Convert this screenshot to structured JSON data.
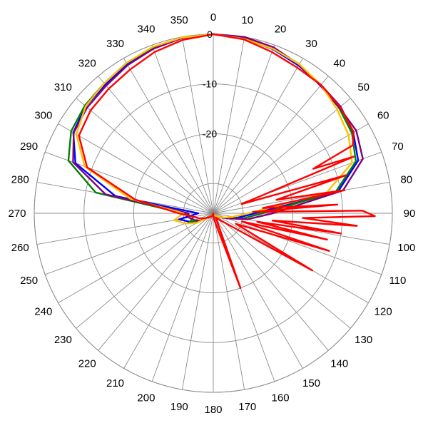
{
  "chart_data": {
    "type": "polar-line",
    "title": "",
    "angle_ticks": [
      0,
      10,
      20,
      30,
      40,
      50,
      60,
      70,
      80,
      90,
      100,
      110,
      120,
      130,
      140,
      150,
      160,
      170,
      180,
      190,
      200,
      210,
      220,
      230,
      240,
      250,
      260,
      270,
      280,
      290,
      300,
      310,
      320,
      330,
      340,
      350
    ],
    "angle_direction": "clockwise",
    "zero_at": "top",
    "radial_range": [
      -36,
      0
    ],
    "radial_ticks": [
      0,
      -10,
      -20
    ],
    "grid": true,
    "series": [
      {
        "color": "#0000ff",
        "points": [
          [
            0,
            0
          ],
          [
            10,
            -0.3
          ],
          [
            20,
            -0.9
          ],
          [
            30,
            -1.7
          ],
          [
            40,
            -2.3
          ],
          [
            50,
            -2.6
          ],
          [
            60,
            -3.5
          ],
          [
            70,
            -5
          ],
          [
            80,
            -10.5
          ],
          [
            90,
            -27.5
          ],
          [
            100,
            -31
          ],
          [
            110,
            -33
          ],
          [
            120,
            -34.5
          ],
          [
            150,
            -35.5
          ],
          [
            180,
            -36
          ],
          [
            210,
            -35.5
          ],
          [
            240,
            -33
          ],
          [
            250,
            -31
          ],
          [
            260,
            -29
          ],
          [
            270,
            -33
          ],
          [
            280,
            -16
          ],
          [
            290,
            -6.5
          ],
          [
            300,
            -3.5
          ],
          [
            310,
            -2.5
          ],
          [
            320,
            -2.2
          ],
          [
            330,
            -1.3
          ],
          [
            340,
            -0.6
          ],
          [
            350,
            -0.1
          ],
          [
            360,
            0
          ]
        ]
      },
      {
        "color": "#008000",
        "points": [
          [
            0,
            0
          ],
          [
            10,
            -0.2
          ],
          [
            20,
            -0.7
          ],
          [
            30,
            -1.4
          ],
          [
            40,
            -2.4
          ],
          [
            50,
            -3
          ],
          [
            60,
            -3.8
          ],
          [
            70,
            -5.5
          ],
          [
            80,
            -11
          ],
          [
            90,
            -26
          ],
          [
            100,
            -30
          ],
          [
            110,
            -33
          ],
          [
            120,
            -34.5
          ],
          [
            150,
            -35.5
          ],
          [
            180,
            -36
          ],
          [
            210,
            -35.5
          ],
          [
            240,
            -33
          ],
          [
            250,
            -31
          ],
          [
            260,
            -32
          ],
          [
            270,
            -30
          ],
          [
            280,
            -12
          ],
          [
            290,
            -5
          ],
          [
            300,
            -3
          ],
          [
            310,
            -2.3
          ],
          [
            320,
            -1.9
          ],
          [
            330,
            -1.1
          ],
          [
            340,
            -0.5
          ],
          [
            350,
            -0.1
          ],
          [
            360,
            0
          ]
        ]
      },
      {
        "color": "#800080",
        "points": [
          [
            0,
            0
          ],
          [
            10,
            0
          ],
          [
            20,
            -0.5
          ],
          [
            30,
            -1.5
          ],
          [
            40,
            -2.5
          ],
          [
            50,
            -2.9
          ],
          [
            60,
            -2.8
          ],
          [
            70,
            -4
          ],
          [
            80,
            -9.5
          ],
          [
            90,
            -24
          ],
          [
            100,
            -29
          ],
          [
            110,
            -33
          ],
          [
            120,
            -34.5
          ],
          [
            150,
            -35.5
          ],
          [
            180,
            -36
          ],
          [
            210,
            -35.5
          ],
          [
            240,
            -33
          ],
          [
            250,
            -32
          ],
          [
            260,
            -31
          ],
          [
            270,
            -31
          ],
          [
            280,
            -14
          ],
          [
            290,
            -6
          ],
          [
            300,
            -3.6
          ],
          [
            310,
            -2.9
          ],
          [
            320,
            -2.5
          ],
          [
            330,
            -1.6
          ],
          [
            340,
            -0.8
          ],
          [
            350,
            -0.2
          ],
          [
            360,
            0
          ]
        ]
      },
      {
        "color": "#ffc000",
        "points": [
          [
            0,
            0
          ],
          [
            10,
            -0.4
          ],
          [
            20,
            -0.8
          ],
          [
            30,
            -1.4
          ],
          [
            40,
            -2.3
          ],
          [
            50,
            -3.5
          ],
          [
            60,
            -4.6
          ],
          [
            70,
            -6.3
          ],
          [
            80,
            -13
          ],
          [
            90,
            -29
          ],
          [
            100,
            -32
          ],
          [
            110,
            -33.5
          ],
          [
            120,
            -34.5
          ],
          [
            150,
            -35.5
          ],
          [
            180,
            -36
          ],
          [
            210,
            -35.5
          ],
          [
            240,
            -32
          ],
          [
            250,
            -30
          ],
          [
            260,
            -28
          ],
          [
            270,
            -30
          ],
          [
            280,
            -19
          ],
          [
            290,
            -8.5
          ],
          [
            300,
            -4.2
          ],
          [
            310,
            -2.5
          ],
          [
            320,
            -1.9
          ],
          [
            330,
            -1.1
          ],
          [
            340,
            -0.4
          ],
          [
            350,
            -0.1
          ],
          [
            360,
            0
          ]
        ]
      },
      {
        "color": "#ff0000",
        "points": [
          [
            0,
            0
          ],
          [
            10,
            -0.5
          ],
          [
            20,
            -1.5
          ],
          [
            30,
            -2.2
          ],
          [
            40,
            -2.3
          ],
          [
            50,
            -2.7
          ],
          [
            60,
            -3.4
          ],
          [
            64,
            -4.8
          ],
          [
            66,
            -14
          ],
          [
            68,
            -5.6
          ],
          [
            72,
            -30
          ],
          [
            74,
            -8.2
          ],
          [
            78,
            -23
          ],
          [
            80,
            -9.2
          ],
          [
            84,
            -26
          ],
          [
            86,
            -11
          ],
          [
            88,
            -28
          ],
          [
            89,
            -6
          ],
          [
            91,
            -3.5
          ],
          [
            93,
            -18
          ],
          [
            95,
            -7
          ],
          [
            97,
            -24
          ],
          [
            99,
            -10
          ],
          [
            101,
            -27
          ],
          [
            103,
            -12.5
          ],
          [
            106,
            -30
          ],
          [
            108,
            -11.5
          ],
          [
            115,
            -31
          ],
          [
            120,
            -13
          ],
          [
            125,
            -31
          ],
          [
            135,
            -34
          ],
          [
            150,
            -35
          ],
          [
            160,
            -20
          ],
          [
            165,
            -33
          ],
          [
            175,
            -35
          ],
          [
            180,
            -36
          ],
          [
            200,
            -35.5
          ],
          [
            220,
            -35
          ],
          [
            240,
            -34
          ],
          [
            250,
            -33
          ],
          [
            260,
            -32
          ],
          [
            270,
            -29
          ],
          [
            280,
            -20
          ],
          [
            290,
            -9
          ],
          [
            300,
            -4.8
          ],
          [
            310,
            -3.8
          ],
          [
            320,
            -3.3
          ],
          [
            330,
            -2.6
          ],
          [
            340,
            -1.5
          ],
          [
            350,
            -0.6
          ],
          [
            360,
            0
          ]
        ]
      }
    ]
  }
}
